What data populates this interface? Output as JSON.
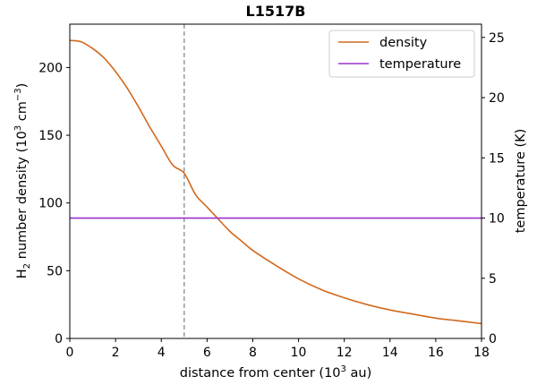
{
  "chart_data": {
    "type": "line",
    "title": "L1517B",
    "xlabel": {
      "pre": "distance from center (10",
      "sup": "3",
      "post": " au)"
    },
    "ylabel_left": {
      "pre": "H",
      "sub": "2",
      "mid": " number density (10",
      "sup1": "3",
      "mid2": " cm",
      "sup2": "−3",
      "post": ")"
    },
    "ylabel_right": "temperature (K)",
    "xlim": [
      0,
      18
    ],
    "ylim_left": [
      0,
      232
    ],
    "ylim_right": [
      0,
      26.1
    ],
    "xticks": [
      0,
      2,
      4,
      6,
      8,
      10,
      12,
      14,
      16,
      18
    ],
    "yticks_left": [
      0,
      50,
      100,
      150,
      200
    ],
    "yticks_right": [
      0,
      5,
      10,
      15,
      20,
      25
    ],
    "grid": false,
    "legend_position": "top-right",
    "vline": {
      "x": 5,
      "style": "dashed",
      "color": "#999999"
    },
    "series": [
      {
        "name": "density",
        "axis": "left",
        "color": "#d2691e",
        "x": [
          0,
          0.5,
          1,
          1.5,
          2,
          2.5,
          3,
          3.5,
          4,
          4.5,
          5,
          5.5,
          6,
          6.5,
          7,
          7.5,
          8,
          9,
          10,
          11,
          12,
          13,
          14,
          15,
          16,
          17,
          18
        ],
        "values": [
          220,
          219,
          214,
          207,
          197,
          185,
          171,
          156,
          142,
          128,
          122,
          106,
          97,
          88,
          79,
          72,
          65,
          54,
          44,
          36,
          30,
          25,
          21,
          18,
          15,
          13,
          11
        ]
      },
      {
        "name": "temperature",
        "axis": "right",
        "color": "#9932cc",
        "x": [
          0,
          18
        ],
        "values": [
          10,
          10
        ]
      }
    ]
  }
}
